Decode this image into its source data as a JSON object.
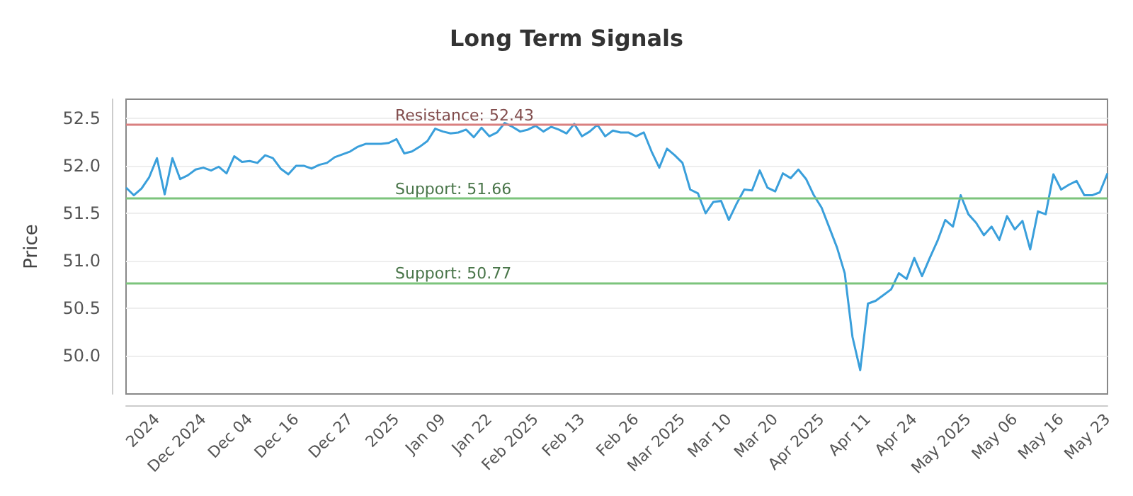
{
  "chart_data": {
    "type": "line",
    "title": "Long Term Signals",
    "ylabel": "Price",
    "categories": [
      null,
      null,
      null,
      null,
      "2024",
      null,
      null,
      null,
      null,
      null,
      "Dec 2024",
      null,
      null,
      null,
      null,
      null,
      "Dec 04",
      null,
      null,
      null,
      null,
      null,
      "Dec 16",
      null,
      null,
      null,
      null,
      null,
      null,
      "Dec 27",
      null,
      null,
      null,
      null,
      null,
      "2025",
      null,
      null,
      null,
      null,
      null,
      "Jan 09",
      null,
      null,
      null,
      null,
      null,
      "Jan 22",
      null,
      null,
      null,
      null,
      null,
      "Feb 2025",
      null,
      null,
      null,
      null,
      null,
      "Feb 13",
      null,
      null,
      null,
      null,
      null,
      null,
      "Feb 26",
      null,
      null,
      null,
      null,
      null,
      "Mar 2025",
      null,
      null,
      null,
      null,
      null,
      "Mar 10",
      null,
      null,
      null,
      null,
      null,
      "Mar 20",
      null,
      null,
      null,
      null,
      null,
      "Apr 2025",
      null,
      null,
      null,
      null,
      null,
      "Apr 11",
      null,
      null,
      null,
      null,
      null,
      "Apr 24",
      null,
      null,
      null,
      null,
      null,
      null,
      "May 2025",
      null,
      null,
      null,
      null,
      null,
      "May 06",
      null,
      null,
      null,
      null,
      null,
      "May 16",
      null,
      null,
      null,
      null,
      null,
      "May 23"
    ],
    "series": [
      {
        "color": "#3a9fdb",
        "values": [
          51.77,
          51.69,
          51.76,
          51.88,
          52.08,
          51.7,
          52.08,
          51.86,
          51.9,
          51.96,
          51.98,
          51.95,
          51.99,
          51.92,
          52.1,
          52.04,
          52.05,
          52.03,
          52.11,
          52.08,
          51.97,
          51.91,
          52.0,
          52.0,
          51.97,
          52.01,
          52.03,
          52.09,
          52.12,
          52.15,
          52.2,
          52.23,
          52.23,
          52.23,
          52.24,
          52.28,
          52.13,
          52.15,
          52.2,
          52.26,
          52.39,
          52.36,
          52.34,
          52.35,
          52.38,
          52.3,
          52.4,
          52.31,
          52.35,
          52.45,
          52.41,
          52.36,
          52.38,
          52.42,
          52.36,
          52.41,
          52.38,
          52.34,
          52.44,
          52.31,
          52.36,
          52.43,
          52.31,
          52.37,
          52.35,
          52.35,
          52.31,
          52.35,
          52.15,
          51.98,
          52.18,
          52.11,
          52.03,
          51.75,
          51.71,
          51.5,
          51.62,
          51.63,
          51.43,
          51.6,
          51.75,
          51.74,
          51.95,
          51.77,
          51.73,
          51.92,
          51.87,
          51.96,
          51.86,
          51.69,
          51.56,
          51.35,
          51.14,
          50.87,
          50.2,
          49.85,
          50.55,
          50.58,
          50.64,
          50.7,
          50.87,
          50.81,
          51.03,
          50.84,
          51.03,
          51.21,
          51.43,
          51.36,
          51.69,
          51.49,
          51.4,
          51.27,
          51.36,
          51.22,
          51.47,
          51.33,
          51.42,
          51.12,
          51.52,
          51.49,
          51.91,
          51.75,
          51.8,
          51.84,
          51.69,
          51.69,
          51.72,
          51.92
        ]
      }
    ],
    "ylim": [
      49.6,
      52.7
    ],
    "yticks": [
      {
        "value": 50,
        "label": "50.0"
      },
      50.5,
      {
        "value": 51,
        "label": "51.0"
      },
      51.5,
      {
        "value": 52,
        "label": "52.0"
      },
      52.5
    ],
    "grid": "y",
    "marker": "none",
    "ref_lines": [
      {
        "axis": "y",
        "value": 52.43,
        "label": "Resistance: 52.43",
        "color": "#d98080"
      },
      {
        "axis": "y",
        "value": 51.66,
        "label": "Support: 51.66",
        "color": "#7cc47c"
      },
      {
        "axis": "y",
        "value": 50.77,
        "label": "Support: 50.77",
        "color": "#7cc47c"
      }
    ]
  }
}
